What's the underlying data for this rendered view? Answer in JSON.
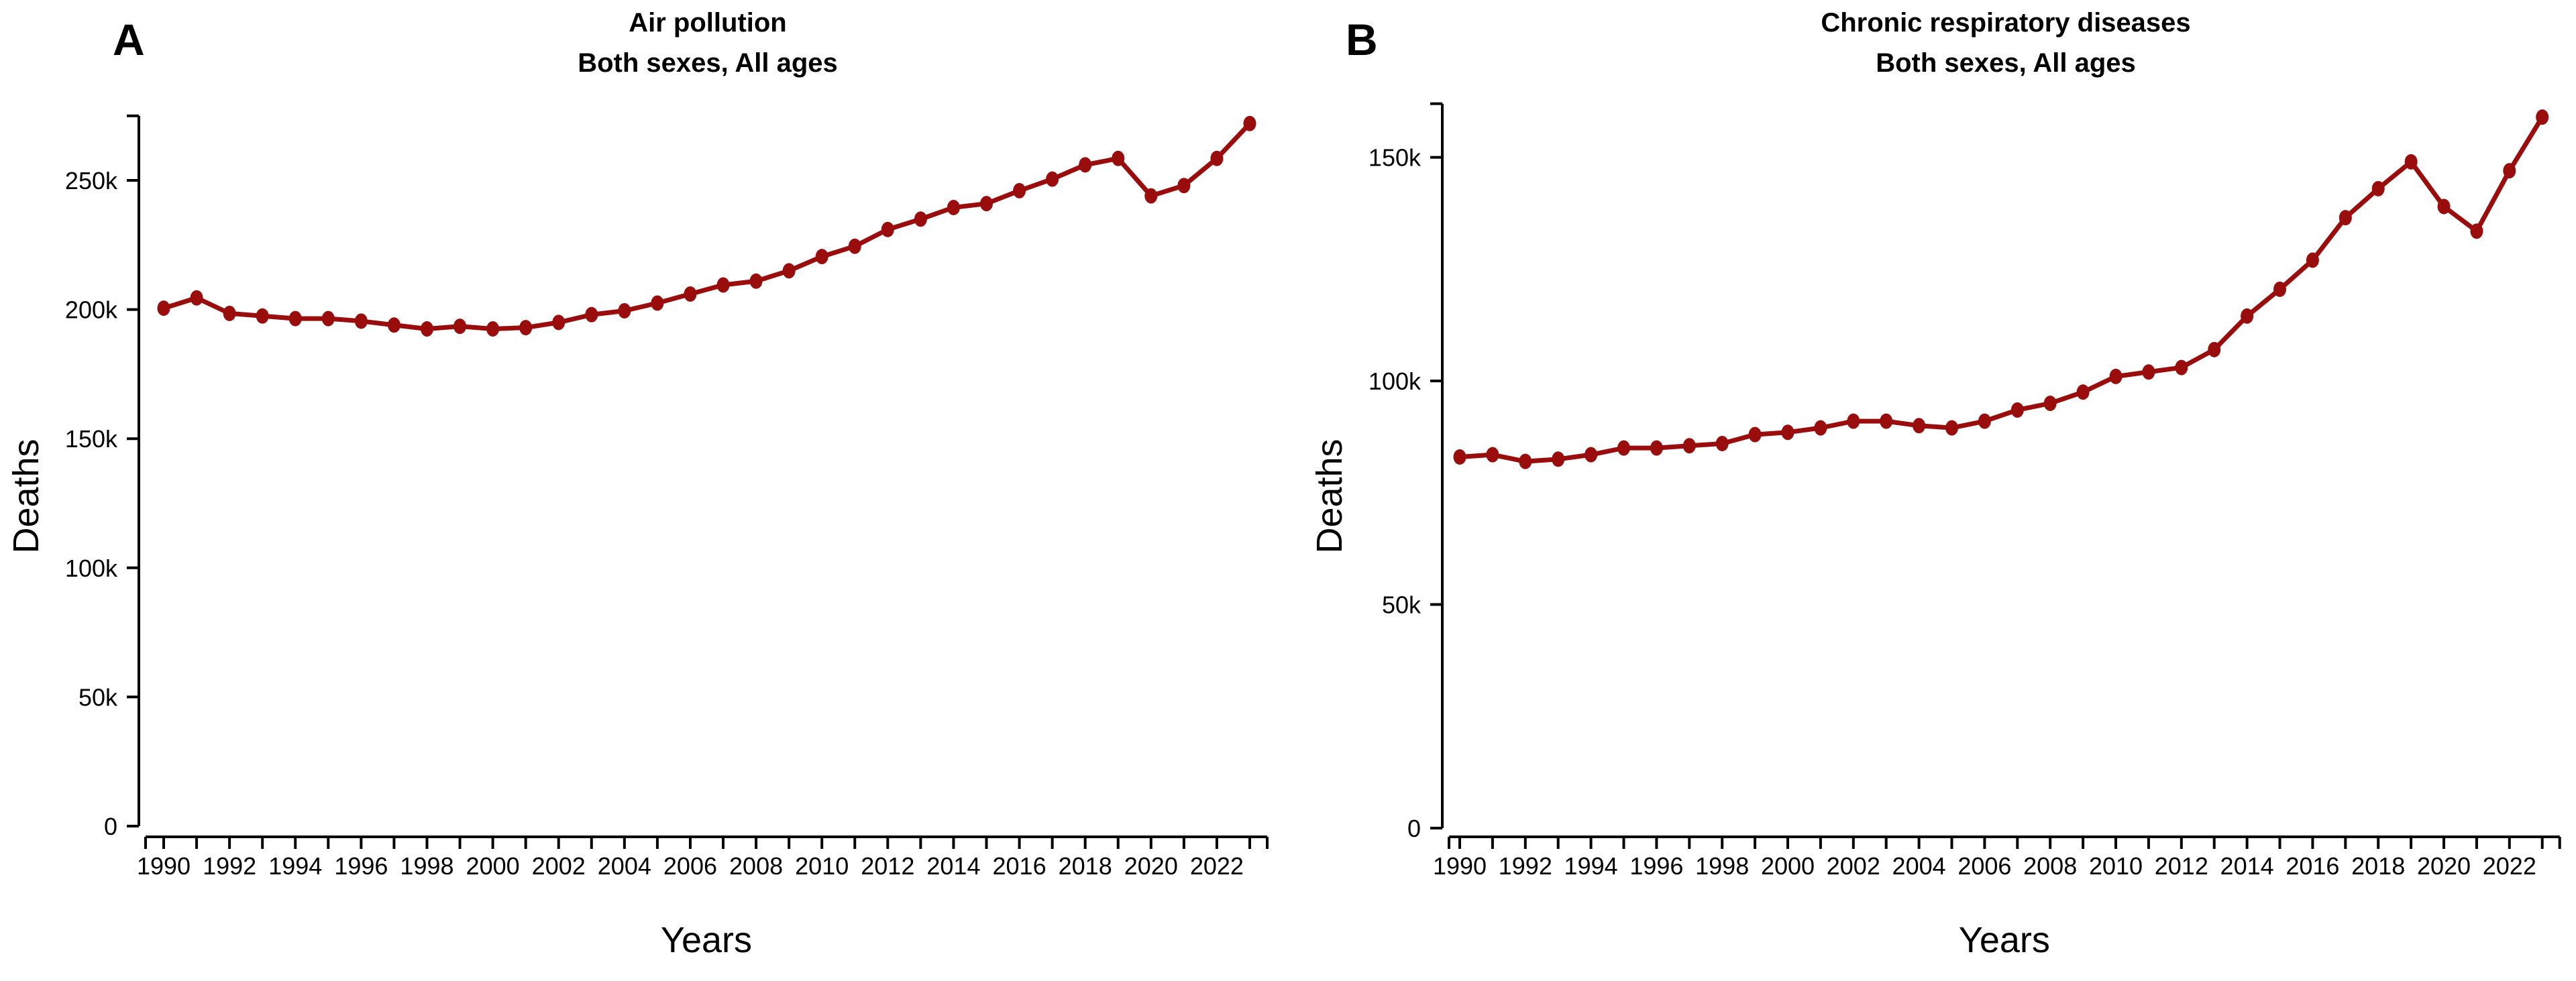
{
  "figure": {
    "background": "#ffffff",
    "accent_color": "#9a0d0d",
    "axis_color": "#000000",
    "text_color": "#000000"
  },
  "chart_data": [
    {
      "type": "line",
      "panel_label": "A",
      "title": "Air pollution",
      "subtitle": "Both sexes, All ages",
      "xlabel": "Years",
      "ylabel": "Deaths",
      "unit": "deaths",
      "series_name": "Air pollution deaths, both sexes, all ages",
      "line_color": "#9a0d0d",
      "marker": "circle",
      "grid": false,
      "legend": "none",
      "x": [
        1990,
        1991,
        1992,
        1993,
        1994,
        1995,
        1996,
        1997,
        1998,
        1999,
        2000,
        2001,
        2002,
        2003,
        2004,
        2005,
        2006,
        2007,
        2008,
        2009,
        2010,
        2011,
        2012,
        2013,
        2014,
        2015,
        2016,
        2017,
        2018,
        2019,
        2020,
        2021,
        2022,
        2023
      ],
      "values_k": [
        200.5,
        204.5,
        198.5,
        197.5,
        196.5,
        196.5,
        195.5,
        194,
        192.5,
        193.5,
        192.5,
        193,
        195,
        198,
        199.5,
        202.5,
        206,
        209.5,
        211,
        215,
        220.5,
        224.5,
        231,
        235,
        239.5,
        241,
        246,
        250.5,
        256,
        258.5,
        244,
        248,
        258.5,
        272
      ],
      "xlim": [
        1990,
        2023
      ],
      "xtick_years": [
        1990,
        1992,
        1994,
        1996,
        1998,
        2000,
        2002,
        2004,
        2006,
        2008,
        2010,
        2012,
        2014,
        2016,
        2018,
        2020,
        2022
      ],
      "yticks_k": [
        0,
        50,
        100,
        150,
        200,
        250
      ],
      "ytick_labels": [
        "0",
        "50k",
        "100k",
        "150k",
        "200k",
        "250k"
      ],
      "ylim_k": [
        0,
        275
      ]
    },
    {
      "type": "line",
      "panel_label": "B",
      "title": "Chronic respiratory diseases",
      "subtitle": "Both sexes, All ages",
      "xlabel": "Years",
      "ylabel": "Deaths",
      "unit": "deaths",
      "series_name": "Chronic respiratory diseases deaths, both sexes, all ages",
      "line_color": "#9a0d0d",
      "marker": "circle",
      "grid": false,
      "legend": "none",
      "x": [
        1990,
        1991,
        1992,
        1993,
        1994,
        1995,
        1996,
        1997,
        1998,
        1999,
        2000,
        2001,
        2002,
        2003,
        2004,
        2005,
        2006,
        2007,
        2008,
        2009,
        2010,
        2011,
        2012,
        2013,
        2014,
        2015,
        2016,
        2017,
        2018,
        2019,
        2020,
        2021,
        2022,
        2023
      ],
      "values_k": [
        83,
        83.5,
        82,
        82.5,
        83.5,
        85,
        85,
        85.5,
        86,
        88,
        88.5,
        89.5,
        91,
        91,
        90,
        89.5,
        91,
        93.5,
        95,
        97.5,
        101,
        102,
        103,
        107,
        114.5,
        120.5,
        127,
        136.5,
        143,
        149,
        139,
        133.5,
        147,
        159
      ],
      "xlim": [
        1990,
        2023
      ],
      "xtick_years": [
        1990,
        1992,
        1994,
        1996,
        1998,
        2000,
        2002,
        2004,
        2006,
        2008,
        2010,
        2012,
        2014,
        2016,
        2018,
        2020,
        2022
      ],
      "yticks_k": [
        0,
        50,
        100,
        150
      ],
      "ytick_labels": [
        "0",
        "50k",
        "100k",
        "150k"
      ],
      "ylim_k": [
        0,
        162
      ]
    }
  ]
}
